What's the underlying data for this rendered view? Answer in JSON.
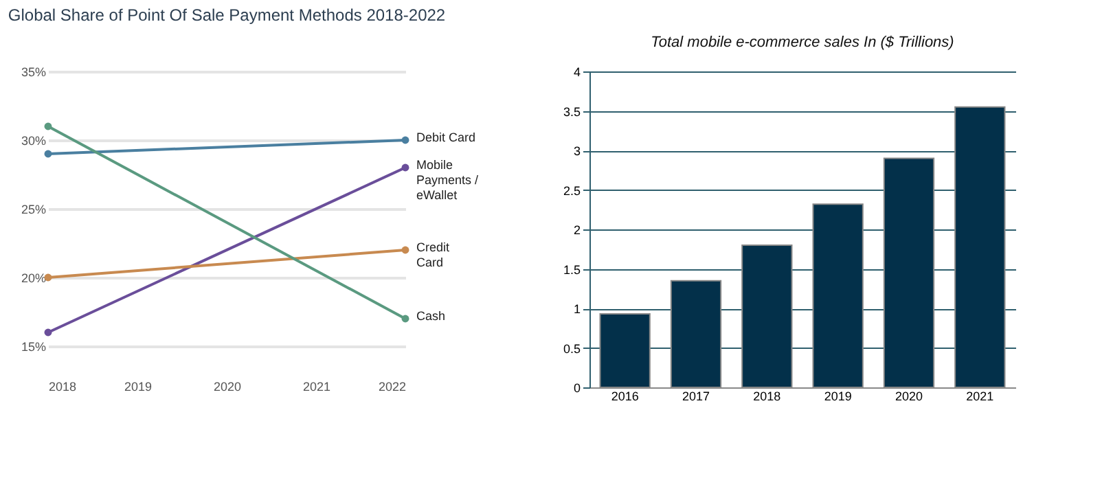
{
  "chart_data": [
    {
      "type": "line",
      "title": "Global Share of Point Of Sale Payment Methods 2018-2022",
      "x": [
        2018,
        2022
      ],
      "xlim": [
        2018,
        2022
      ],
      "xticks": [
        2018,
        2019,
        2020,
        2021,
        2022
      ],
      "ylim": [
        15,
        35
      ],
      "yticks": [
        {
          "value": 15,
          "label": "15%"
        },
        {
          "value": 20,
          "label": "20%"
        },
        {
          "value": 25,
          "label": "25%"
        },
        {
          "value": 30,
          "label": "30%"
        },
        {
          "value": 35,
          "label": "35%"
        }
      ],
      "grid": "y",
      "legend": false,
      "marker": "circle",
      "line_style": "solid",
      "series": [
        {
          "name": "Debit Card",
          "color": "#4a7fa0",
          "values": [
            29,
            30
          ]
        },
        {
          "name": "Mobile Payments / eWallet",
          "color": "#6a4e9a",
          "values": [
            16,
            28
          ]
        },
        {
          "name": "Credit Card",
          "color": "#c88a50",
          "values": [
            20,
            22
          ]
        },
        {
          "name": "Cash",
          "color": "#5a9a80",
          "values": [
            31,
            17
          ]
        }
      ]
    },
    {
      "type": "bar",
      "title": "Total mobile e-commerce sales In ($ Trillions)",
      "categories": [
        "2016",
        "2017",
        "2018",
        "2019",
        "2020",
        "2021"
      ],
      "values": [
        0.93,
        1.35,
        1.8,
        2.32,
        2.9,
        3.55
      ],
      "color": "#03304a",
      "ylim": [
        0,
        4
      ],
      "yticks": [
        0,
        0.5,
        1,
        1.5,
        2,
        2.5,
        3,
        3.5,
        4
      ],
      "grid": "y"
    }
  ]
}
